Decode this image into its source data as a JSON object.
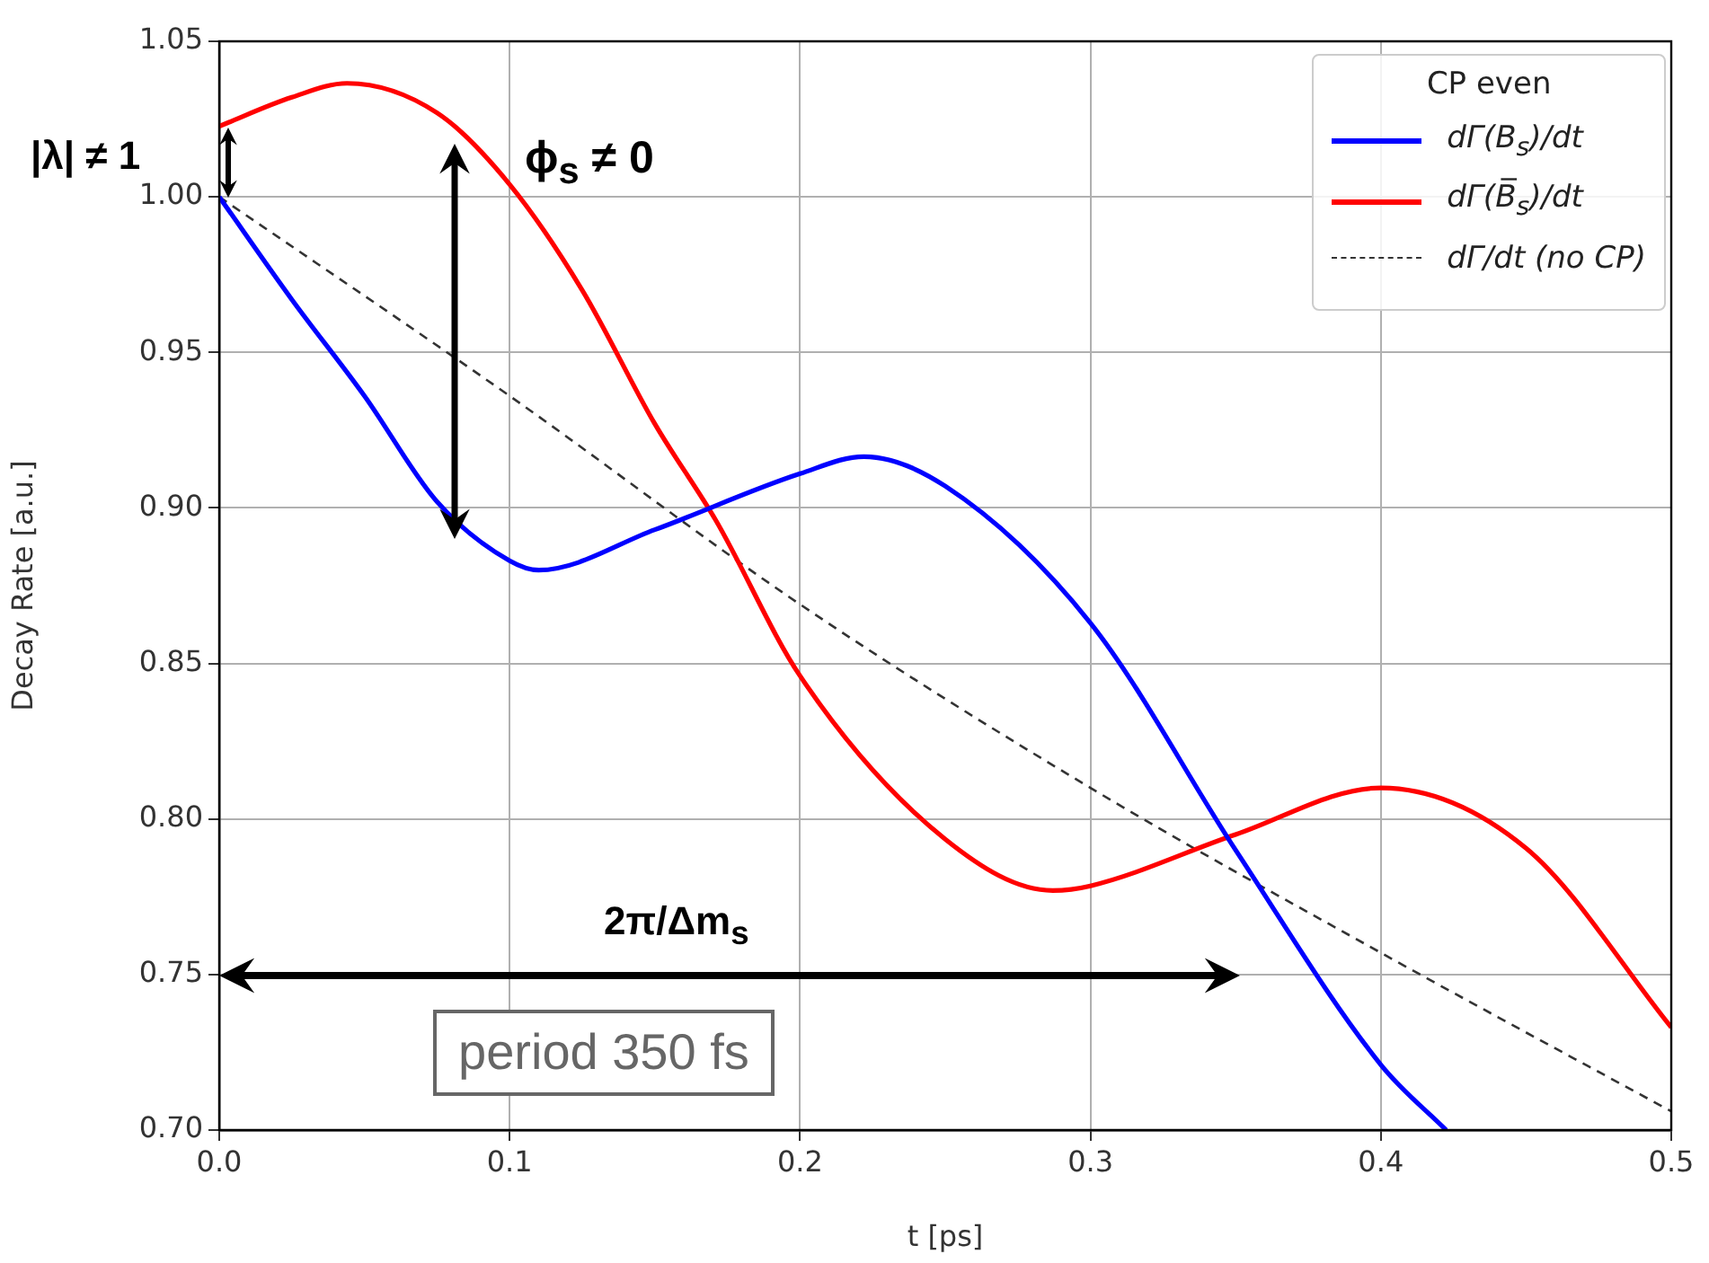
{
  "chart_data": {
    "type": "line",
    "xlabel": "t [ps]",
    "ylabel": "Decay Rate [a.u.]",
    "legend_title": "CP even",
    "legend": "top right",
    "grid": true,
    "xlim": [
      0,
      0.5
    ],
    "xticks": [
      {
        "value": 0,
        "label": "0.0"
      },
      {
        "value": 0.1,
        "label": "0.1"
      },
      {
        "value": 0.2,
        "label": "0.2"
      },
      {
        "value": 0.3,
        "label": "0.3"
      },
      {
        "value": 0.4,
        "label": "0.4"
      },
      {
        "value": 0.5,
        "label": "0.5"
      }
    ],
    "ylim": [
      0.7,
      1.05
    ],
    "yticks": [
      {
        "value": 0.7,
        "label": "0.70"
      },
      {
        "value": 0.75,
        "label": "0.75"
      },
      {
        "value": 0.8,
        "label": "0.80"
      },
      {
        "value": 0.85,
        "label": "0.85"
      },
      {
        "value": 0.9,
        "label": "0.90"
      },
      {
        "value": 0.95,
        "label": "0.95"
      },
      {
        "value": 1.0,
        "label": "1.00"
      },
      {
        "value": 1.05,
        "label": "1.05"
      }
    ],
    "series": [
      {
        "name": "dΓ(B$_{s}$)/dt",
        "color": "#0000ff",
        "line_style": "solid",
        "x": [
          0,
          0.025,
          0.05,
          0.075,
          0.1,
          0.11,
          0.15,
          0.2,
          0.222,
          0.25,
          0.3,
          0.35,
          0.4,
          0.4225
        ],
        "values": [
          1.0,
          0.967,
          0.936,
          0.902,
          0.883,
          0.88,
          0.893,
          0.911,
          0.9165,
          0.907,
          0.863,
          0.79,
          0.721,
          0.7
        ]
      },
      {
        "name": "dΓ(B̅$_{s}$)/dt",
        "color": "#ff0000",
        "line_style": "solid",
        "x": [
          0,
          0.025,
          0.044,
          0.075,
          0.1,
          0.125,
          0.15,
          0.171,
          0.2,
          0.25,
          0.287,
          0.3,
          0.35,
          0.4,
          0.45,
          0.5
        ],
        "values": [
          1.0227,
          1.032,
          1.0365,
          1.027,
          1.004,
          0.97,
          0.927,
          0.896,
          0.846,
          0.7935,
          0.777,
          0.7785,
          0.795,
          0.81,
          0.7906,
          0.733
        ]
      },
      {
        "name": "dΓ/dt (no CP)",
        "color": "#333333",
        "line_style": "dashed",
        "x": [
          0,
          0.1,
          0.2,
          0.3,
          0.4,
          0.5
        ],
        "values": [
          1.0,
          0.936,
          0.869,
          0.81,
          0.757,
          0.706
        ]
      }
    ],
    "annotations": [
      "|λ| ≠ 1",
      "ϕ$_{s}$ ≠ 0",
      "2π/Δm$_{s}$",
      "period 350 fs"
    ]
  }
}
